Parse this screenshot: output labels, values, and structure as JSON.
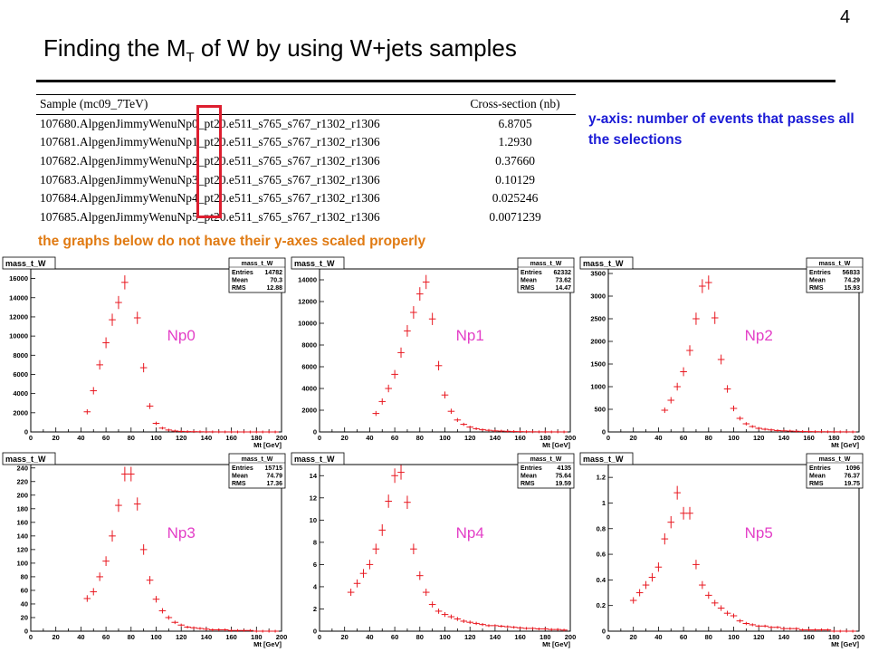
{
  "page_number": "4",
  "title": {
    "text": "Finding the M",
    "sub": "T",
    "rest": " of W by using W+jets samples"
  },
  "table": {
    "headers": [
      "Sample (mc09_7TeV)",
      "Cross-section (nb)"
    ],
    "rows": [
      [
        "107680.AlpgenJimmyWenuNp0_pt20.e511_s765_s767_r1302_r1306",
        "6.8705"
      ],
      [
        "107681.AlpgenJimmyWenuNp1_pt20.e511_s765_s767_r1302_r1306",
        "1.2930"
      ],
      [
        "107682.AlpgenJimmyWenuNp2_pt20.e511_s765_s767_r1302_r1306",
        "0.37660"
      ],
      [
        "107683.AlpgenJimmyWenuNp3_pt20.e511_s765_s767_r1302_r1306",
        "0.10129"
      ],
      [
        "107684.AlpgenJimmyWenuNp4_pt20.e511_s765_s767_r1302_r1306",
        "0.025246"
      ],
      [
        "107685.AlpgenJimmyWenuNp5_pt20.e511_s765_s767_r1302_r1306",
        "0.0071239"
      ]
    ]
  },
  "note": "y-axis: number of events that passes all the selections",
  "warning": "the graphs below do not have their y-axes scaled properly",
  "chart_data": [
    {
      "type": "scatter",
      "hist_name": "mass_t_W",
      "label": "Np0",
      "xlabel": "Mt [GeV]",
      "stats": {
        "Entries": "14782",
        "Mean": "70.3",
        "RMS": "12.88"
      },
      "xlim": [
        0,
        200
      ],
      "ylim": [
        0,
        17000
      ],
      "yticks": [
        0,
        2000,
        4000,
        6000,
        8000,
        10000,
        12000,
        14000,
        16000
      ],
      "x": [
        45,
        50,
        55,
        60,
        65,
        70,
        75,
        85,
        90,
        95,
        100,
        105,
        110,
        115,
        120,
        125,
        130,
        135,
        140,
        145,
        150,
        155,
        160,
        165,
        170,
        175,
        180,
        185,
        190,
        195
      ],
      "y": [
        2100,
        4300,
        7000,
        9300,
        11700,
        13500,
        15600,
        11900,
        6700,
        2700,
        900,
        400,
        200,
        100,
        60,
        40,
        30,
        20,
        10,
        10,
        5,
        5,
        3,
        2,
        2,
        1,
        1,
        1,
        0,
        0
      ]
    },
    {
      "type": "scatter",
      "hist_name": "mass_t_W",
      "label": "Np1",
      "xlabel": "Mt [GeV]",
      "stats": {
        "Entries": "62332",
        "Mean": "73.62",
        "RMS": "14.47"
      },
      "xlim": [
        0,
        200
      ],
      "ylim": [
        0,
        15000
      ],
      "yticks": [
        0,
        2000,
        4000,
        6000,
        8000,
        10000,
        12000,
        14000
      ],
      "x": [
        45,
        50,
        55,
        60,
        65,
        70,
        75,
        80,
        85,
        90,
        95,
        100,
        105,
        110,
        115,
        120,
        125,
        130,
        135,
        140,
        145,
        150,
        155,
        160,
        165,
        170,
        175,
        180,
        185,
        190,
        195
      ],
      "y": [
        1700,
        2800,
        4000,
        5300,
        7300,
        9300,
        11000,
        12700,
        13800,
        10400,
        6100,
        3400,
        1900,
        1100,
        700,
        450,
        300,
        200,
        150,
        100,
        80,
        60,
        40,
        30,
        20,
        15,
        10,
        8,
        5,
        4,
        3
      ]
    },
    {
      "type": "scatter",
      "hist_name": "mass_t_W",
      "label": "Np2",
      "xlabel": "Mt [GeV]",
      "stats": {
        "Entries": "56833",
        "Mean": "74.29",
        "RMS": "15.93"
      },
      "xlim": [
        0,
        200
      ],
      "ylim": [
        0,
        3600
      ],
      "yticks": [
        0,
        500,
        1000,
        1500,
        2000,
        2500,
        3000,
        3500
      ],
      "x": [
        45,
        50,
        55,
        60,
        65,
        70,
        75,
        80,
        85,
        90,
        95,
        100,
        105,
        110,
        115,
        120,
        125,
        130,
        135,
        140,
        145,
        150,
        155,
        160,
        165,
        170,
        175,
        180,
        185,
        190,
        195
      ],
      "y": [
        480,
        700,
        1000,
        1330,
        1800,
        2500,
        3220,
        3300,
        2520,
        1600,
        950,
        520,
        300,
        180,
        120,
        80,
        60,
        45,
        30,
        25,
        20,
        15,
        10,
        8,
        6,
        5,
        4,
        3,
        2,
        2,
        1
      ]
    },
    {
      "type": "scatter",
      "hist_name": "mass_t_W",
      "label": "Np3",
      "xlabel": "Mt [GeV]",
      "stats": {
        "Entries": "15715",
        "Mean": "74.79",
        "RMS": "17.36"
      },
      "xlim": [
        0,
        200
      ],
      "ylim": [
        0,
        245
      ],
      "yticks": [
        0,
        20,
        40,
        60,
        80,
        100,
        120,
        140,
        160,
        180,
        200,
        220,
        240
      ],
      "x": [
        45,
        50,
        55,
        60,
        65,
        70,
        75,
        80,
        85,
        90,
        95,
        100,
        105,
        110,
        115,
        120,
        125,
        130,
        135,
        140,
        145,
        150,
        155,
        160,
        165,
        170,
        175,
        180,
        185,
        190,
        195
      ],
      "y": [
        48,
        58,
        80,
        103,
        140,
        185,
        231,
        231,
        187,
        120,
        75,
        47,
        30,
        20,
        13,
        9,
        6,
        5,
        4,
        3,
        2,
        2,
        2,
        1,
        1,
        1,
        1,
        0,
        0,
        0,
        0
      ]
    },
    {
      "type": "scatter",
      "hist_name": "mass_t_W",
      "label": "Np4",
      "xlabel": "Mt [GeV]",
      "stats": {
        "Entries": "4135",
        "Mean": "75.64",
        "RMS": "19.59"
      },
      "xlim": [
        0,
        200
      ],
      "ylim": [
        0,
        15
      ],
      "yticks": [
        0,
        2,
        4,
        6,
        8,
        10,
        12,
        14
      ],
      "x": [
        25,
        30,
        35,
        40,
        45,
        50,
        55,
        60,
        65,
        70,
        75,
        80,
        85,
        90,
        95,
        100,
        105,
        110,
        115,
        120,
        125,
        130,
        135,
        140,
        145,
        150,
        155,
        160,
        165,
        170,
        175,
        180,
        185,
        190,
        195
      ],
      "y": [
        3.5,
        4.3,
        5.2,
        6.0,
        7.4,
        9.1,
        11.7,
        14.0,
        14.3,
        11.6,
        7.4,
        5.0,
        3.5,
        2.4,
        1.8,
        1.5,
        1.3,
        1.1,
        0.9,
        0.8,
        0.7,
        0.6,
        0.5,
        0.5,
        0.45,
        0.4,
        0.35,
        0.3,
        0.25,
        0.25,
        0.2,
        0.2,
        0.15,
        0.15,
        0.1
      ]
    },
    {
      "type": "scatter",
      "hist_name": "mass_t_W",
      "label": "Np5",
      "xlabel": "Mt [GeV]",
      "stats": {
        "Entries": "1096",
        "Mean": "76.37",
        "RMS": "19.75"
      },
      "xlim": [
        0,
        200
      ],
      "ylim": [
        0,
        1.3
      ],
      "yticks": [
        0,
        0.2,
        0.4,
        0.6,
        0.8,
        1,
        1.2
      ],
      "x": [
        20,
        25,
        30,
        35,
        40,
        45,
        50,
        55,
        60,
        65,
        70,
        75,
        80,
        85,
        90,
        95,
        100,
        105,
        110,
        115,
        120,
        125,
        130,
        135,
        140,
        145,
        150,
        155,
        160,
        165,
        170,
        175,
        180,
        185,
        190,
        195
      ],
      "y": [
        0.24,
        0.3,
        0.36,
        0.42,
        0.5,
        0.72,
        0.85,
        1.08,
        0.92,
        0.92,
        0.52,
        0.36,
        0.28,
        0.22,
        0.18,
        0.14,
        0.12,
        0.08,
        0.06,
        0.05,
        0.04,
        0.04,
        0.03,
        0.03,
        0.02,
        0.02,
        0.02,
        0.01,
        0.01,
        0.01,
        0.01,
        0.01,
        0,
        0,
        0,
        0
      ]
    }
  ]
}
